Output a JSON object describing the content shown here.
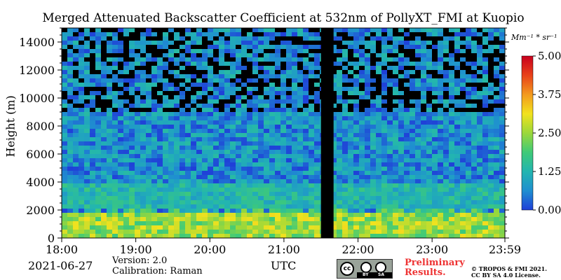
{
  "chart_data": {
    "type": "heatmap",
    "title": "Merged Attenuated Backscatter Coefficient at 532nm of PollyXT_FMI at Kuopio",
    "xlabel": "",
    "ylabel": "Height (m)",
    "x_ticks": [
      "18:00",
      "19:00",
      "20:00",
      "21:00",
      "22:00",
      "23:00",
      "23:59"
    ],
    "x_tick_hours": [
      18,
      19,
      20,
      21,
      22,
      23,
      23.983
    ],
    "xlim_hours": [
      18,
      23.983
    ],
    "y_ticks": [
      0,
      2000,
      4000,
      6000,
      8000,
      10000,
      12000,
      14000
    ],
    "ylim": [
      0,
      15000
    ],
    "colorbar": {
      "unit": "Mm⁻¹ * sr⁻¹",
      "ticks": [
        "0.00",
        "1.25",
        "2.50",
        "3.75",
        "5.00"
      ],
      "range": [
        0,
        5
      ],
      "colormap": [
        "#1f3fd8",
        "#1f8fd0",
        "#22b5b0",
        "#3fca78",
        "#9bd83a",
        "#f2e21e",
        "#f39a1e",
        "#e8411a",
        "#c8001e"
      ]
    },
    "no_data_intervals_hours": [
      [
        21.5,
        21.67
      ]
    ],
    "layers": [
      {
        "height_range_m": [
          0,
          1800
        ],
        "value_range": [
          1.8,
          3.2
        ]
      },
      {
        "height_range_m": [
          1800,
          2200
        ],
        "value_range": [
          0,
          2.5
        ]
      },
      {
        "height_range_m": [
          2200,
          4000
        ],
        "value_range": [
          0.8,
          1.8
        ]
      },
      {
        "height_range_m": [
          4000,
          15000
        ],
        "value_range": [
          0,
          1.4
        ]
      }
    ]
  },
  "footer": {
    "date": "2021-06-27",
    "version": "Version: 2.0",
    "calibration": "Calibration: Raman",
    "utc_label": "UTC",
    "preliminary_line1": "Preliminary",
    "preliminary_line2": "Results.",
    "copyright_line1": "© TROPOS & FMI 2021.",
    "copyright_line2": "CC BY SA 4.0 License."
  },
  "license_badge": {
    "cc": "cc",
    "by": "BY",
    "sa": "SA"
  }
}
